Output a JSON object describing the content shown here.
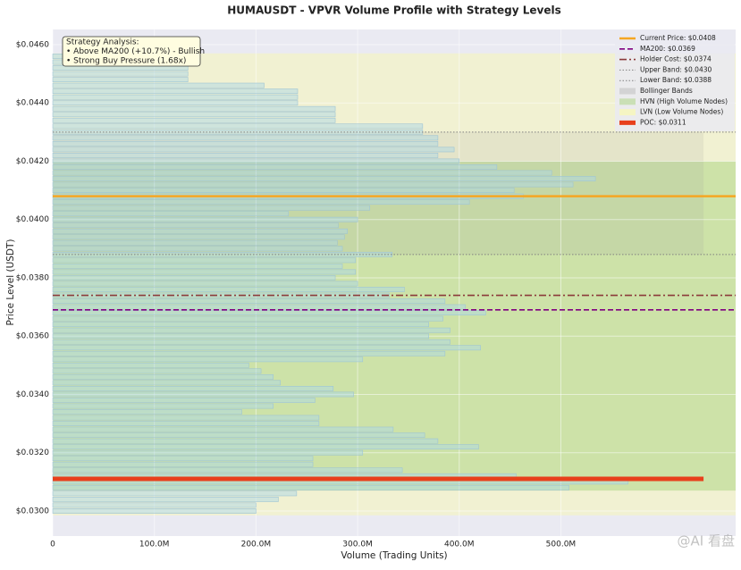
{
  "chart_data": {
    "type": "volume-profile",
    "title": "HUMAUSDT - VPVR Volume Profile with Strategy Levels",
    "xlabel": "Volume (Trading Units)",
    "ylabel": "Price Level (USDT)",
    "y": [
      0.03,
      0.0302,
      0.0304,
      0.0306,
      0.0308,
      0.031,
      0.0312,
      0.0314,
      0.0316,
      0.0318,
      0.032,
      0.0322,
      0.0324,
      0.0326,
      0.0328,
      0.033,
      0.0332,
      0.0334,
      0.0336,
      0.0338,
      0.034,
      0.0342,
      0.0344,
      0.0346,
      0.0348,
      0.035,
      0.0352,
      0.0354,
      0.0356,
      0.0358,
      0.036,
      0.0362,
      0.0364,
      0.0366,
      0.0368,
      0.037,
      0.0372,
      0.0374,
      0.0376,
      0.0378,
      0.038,
      0.0382,
      0.0384,
      0.0386,
      0.0388,
      0.039,
      0.0392,
      0.0394,
      0.0396,
      0.0398,
      0.04,
      0.0402,
      0.0404,
      0.0406,
      0.0408,
      0.041,
      0.0412,
      0.0414,
      0.0416,
      0.0418,
      0.042,
      0.0422,
      0.0424,
      0.0426,
      0.0428,
      0.043,
      0.0432,
      0.0434,
      0.0436,
      0.0438,
      0.044,
      0.0442,
      0.0444,
      0.0446,
      0.0448,
      0.045,
      0.0452,
      0.0454,
      0.0456
    ],
    "values": [
      200000000,
      200000000,
      222000000,
      240000000,
      508000000,
      566000000,
      456000000,
      344000000,
      256000000,
      256000000,
      305000000,
      419000000,
      379000000,
      366000000,
      335000000,
      262000000,
      262000000,
      186000000,
      217000000,
      258000000,
      296000000,
      276000000,
      224000000,
      217000000,
      205000000,
      193000000,
      305000000,
      386000000,
      421000000,
      391000000,
      370000000,
      391000000,
      370000000,
      384000000,
      426000000,
      406000000,
      386000000,
      331000000,
      346000000,
      300000000,
      278000000,
      298000000,
      285000000,
      298000000,
      334000000,
      285000000,
      280000000,
      287000000,
      290000000,
      281000000,
      300000000,
      232000000,
      312000000,
      410000000,
      463000000,
      454000000,
      512000000,
      534000000,
      491000000,
      437000000,
      400000000,
      379000000,
      395000000,
      379000000,
      379000000,
      364000000,
      364000000,
      278000000,
      278000000,
      278000000,
      241000000,
      241000000,
      241000000,
      208000000,
      133000000,
      133000000,
      133000000,
      133000000,
      133000000
    ],
    "color": "#add8e6",
    "xlim": [
      0,
      672000000
    ],
    "ylim": [
      0.02914,
      0.04652
    ],
    "xticks": [
      0,
      {
        "value": 100000000,
        "label": "100.0M"
      },
      {
        "value": 200000000,
        "label": "200.0M"
      },
      {
        "value": 300000000,
        "label": "300.0M"
      },
      {
        "value": 400000000,
        "label": "400.0M"
      },
      {
        "value": 500000000,
        "label": "500.0M"
      }
    ],
    "yticks": [
      {
        "value": 0.03,
        "label": "$0.0300"
      },
      {
        "value": 0.032,
        "label": "$0.0320"
      },
      {
        "value": 0.034,
        "label": "$0.0340"
      },
      {
        "value": 0.036,
        "label": "$0.0360"
      },
      {
        "value": 0.038,
        "label": "$0.0380"
      },
      {
        "value": 0.04,
        "label": "$0.0400"
      },
      {
        "value": 0.042,
        "label": "$0.0420"
      },
      {
        "value": 0.044,
        "label": "$0.0440"
      },
      {
        "value": 0.046,
        "label": "$0.0460"
      }
    ],
    "levels": [
      {
        "name": "Current Price: $0.0408",
        "value": 0.0408,
        "color": "#f5a623",
        "style": "solid"
      },
      {
        "name": "MA200: $0.0369",
        "value": 0.0369,
        "color": "#800080",
        "style": "dashed"
      },
      {
        "name": "Holder Cost: $0.0374",
        "value": 0.0374,
        "color": "#8b3a3a",
        "style": "dashdot"
      },
      {
        "name": "Upper Band: $0.0430",
        "value": 0.043,
        "color": "#808080",
        "style": "dotted"
      },
      {
        "name": "Lower Band: $0.0388",
        "value": 0.0388,
        "color": "#808080",
        "style": "dotted"
      },
      {
        "name": "POC: $0.0311",
        "value": 0.0311,
        "color": "#e8401c",
        "style": "thick"
      }
    ],
    "bands": [
      {
        "name": "Bollinger Bands",
        "range": [
          0.0388,
          0.043
        ],
        "color": "#9a9a9a"
      }
    ],
    "zones": [
      {
        "name": "LVN (Low Volume Nodes)",
        "range": [
          0.02985,
          0.0457
        ],
        "color": "#ffff99"
      },
      {
        "name": "HVN (High Volume Nodes)",
        "range": [
          0.0307,
          0.042
        ],
        "color": "#a9d47e"
      }
    ],
    "annotation": {
      "lines": [
        "Strategy Analysis:",
        "• Above MA200 (+10.7%) - Bullish",
        "• Strong Buy Pressure (1.68x)"
      ]
    },
    "legend": "upper right",
    "watermark": "@AI 看盘"
  }
}
